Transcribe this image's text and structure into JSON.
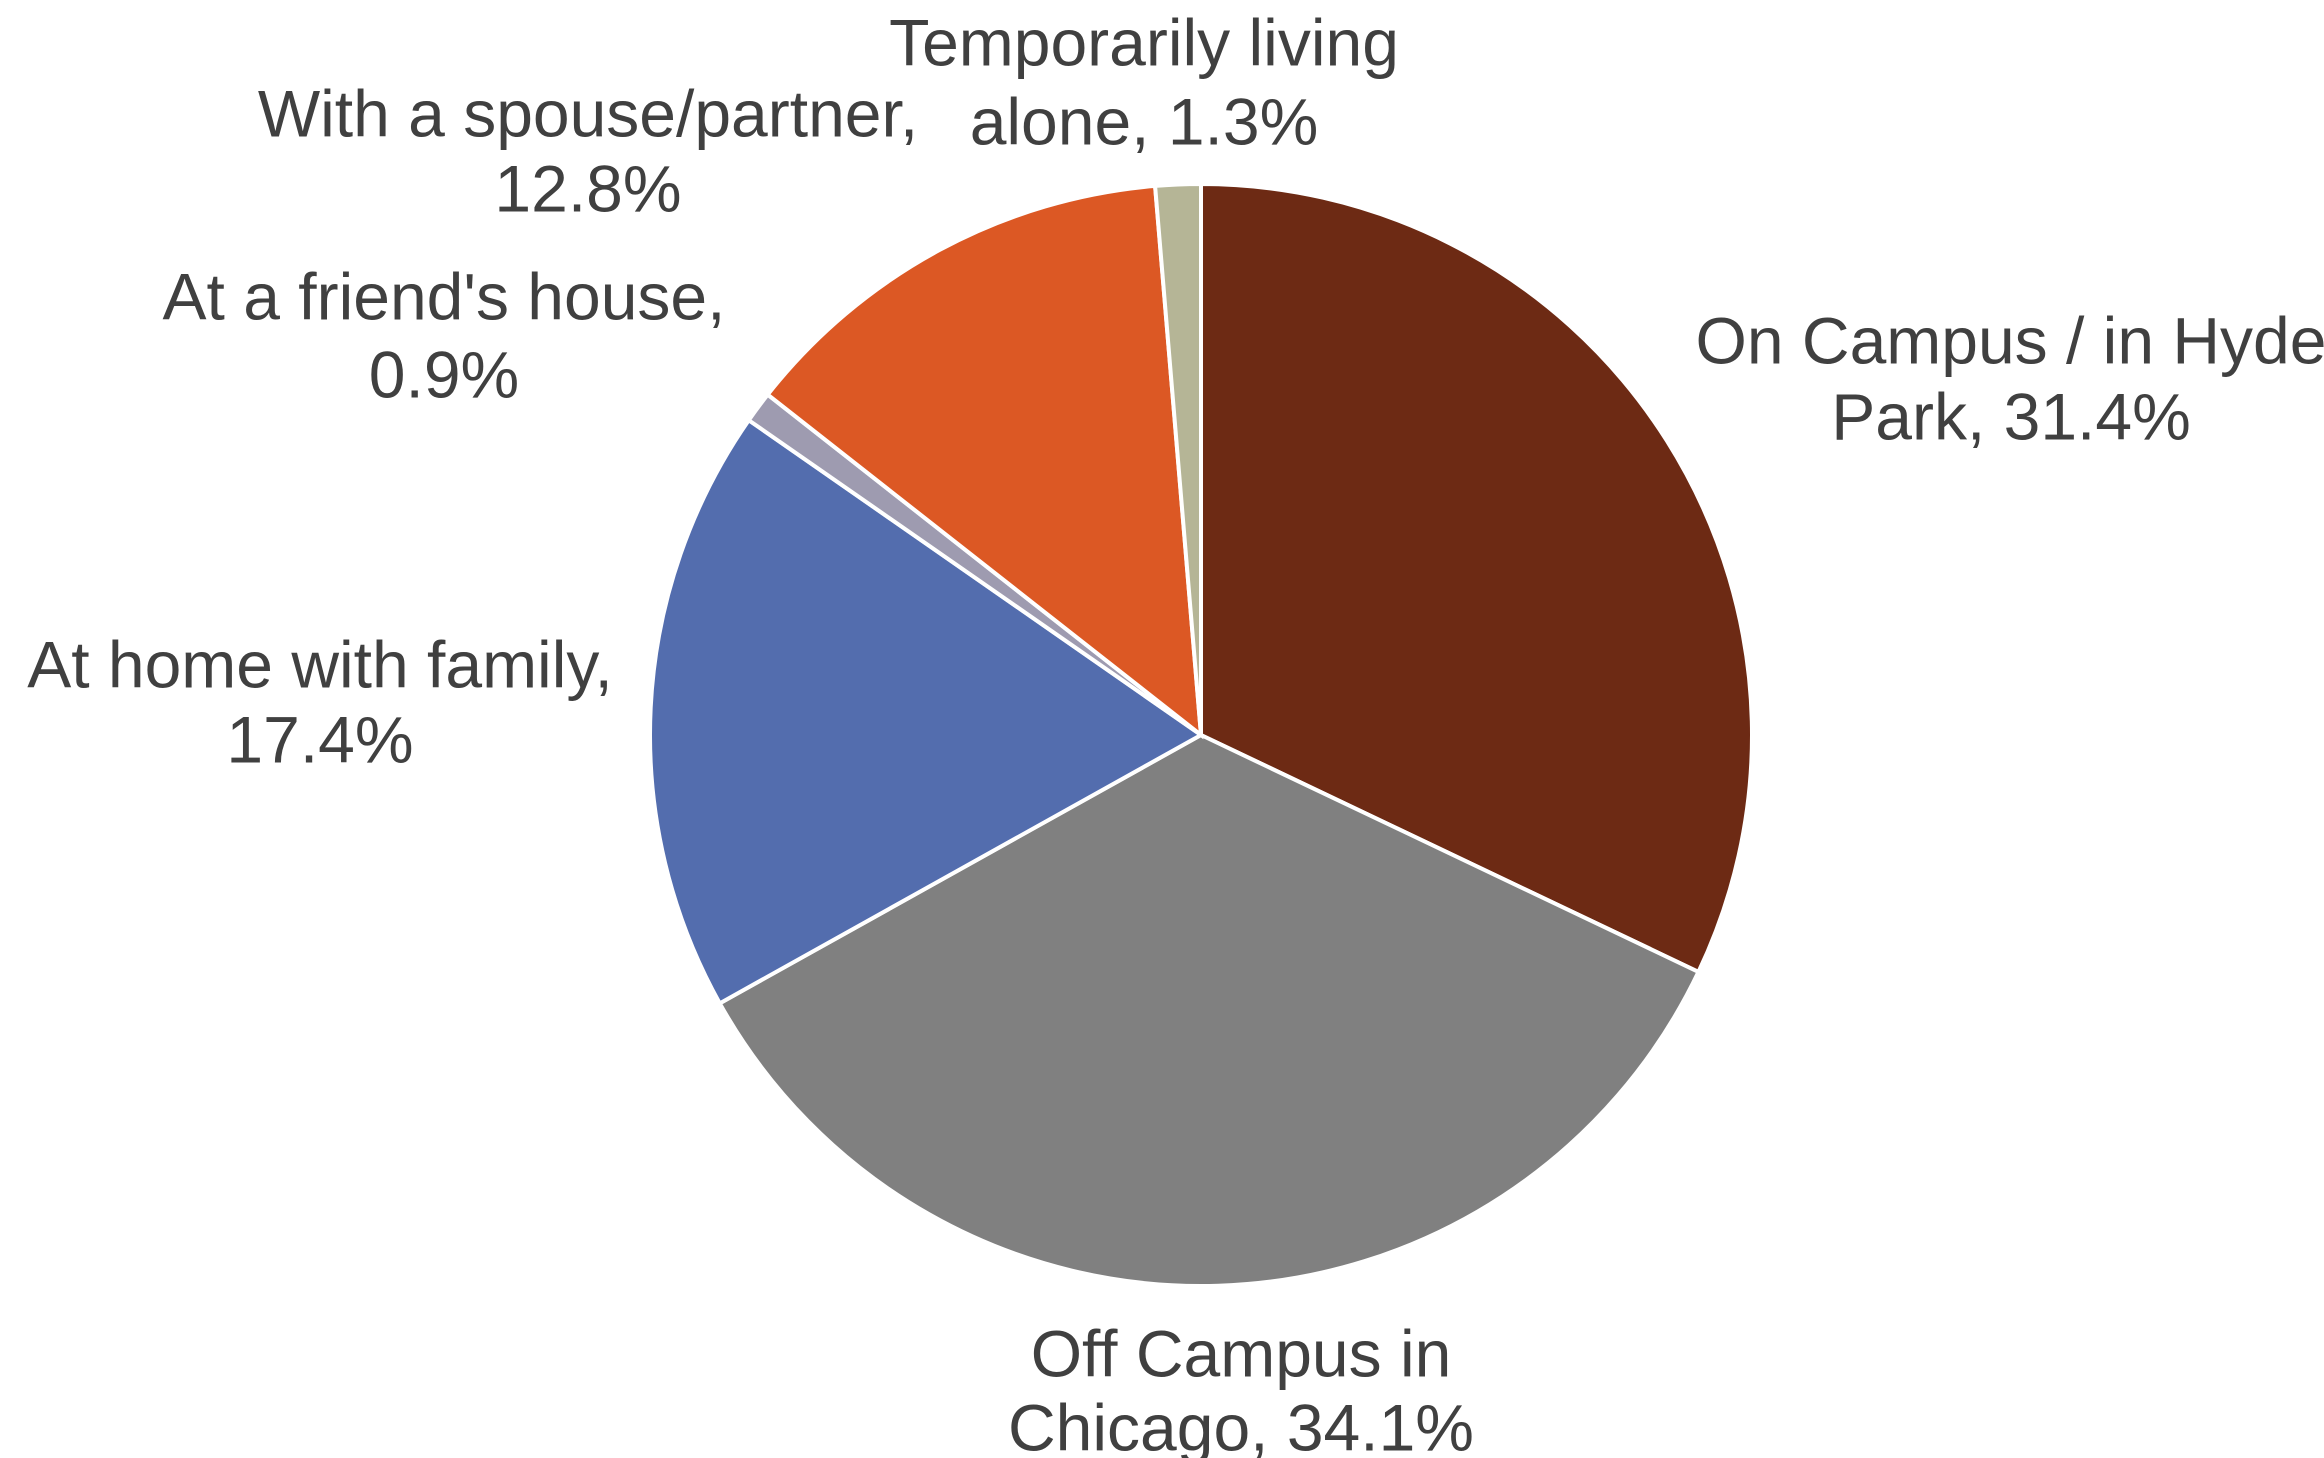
{
  "chart_data": {
    "type": "pie",
    "values": [
      31.4,
      34.1,
      17.4,
      0.9,
      12.8,
      1.3
    ],
    "value_labels": [
      [
        "On Campus / in Hyde",
        "Park, 31.4%"
      ],
      [
        "Off Campus in",
        "Chicago, 34.1%"
      ],
      [
        "At home with family,",
        "17.4%"
      ],
      [
        "At a friend's house,",
        "0.9%"
      ],
      [
        "With a spouse/partner,",
        "12.8%"
      ],
      [
        "Temporarily living",
        "alone, 1.3%"
      ]
    ],
    "colors": [
      "#6d2a14",
      "#808080",
      "#536dae",
      "#9e9bb0",
      "#dc5824",
      "#b5b596"
    ],
    "start_angle": 90,
    "direction": "clockwise"
  }
}
